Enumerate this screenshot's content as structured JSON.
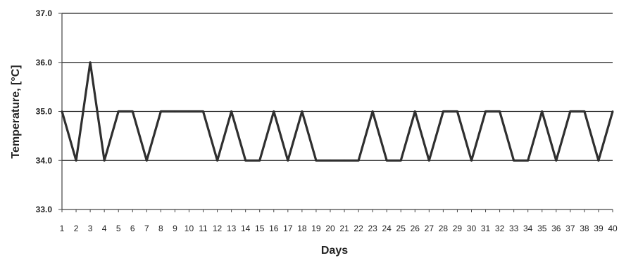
{
  "chart_data": {
    "type": "line",
    "title": "",
    "xlabel": "Days",
    "ylabel": "Temperature, [°C]",
    "categories": [
      "1",
      "2",
      "3",
      "4",
      "5",
      "6",
      "7",
      "8",
      "9",
      "10",
      "11",
      "12",
      "13",
      "14",
      "15",
      "16",
      "17",
      "18",
      "19",
      "20",
      "21",
      "22",
      "23",
      "24",
      "25",
      "26",
      "27",
      "28",
      "29",
      "30",
      "31",
      "32",
      "33",
      "34",
      "35",
      "36",
      "37",
      "38",
      "39",
      "40"
    ],
    "y_ticks": [
      "33.0",
      "34.0",
      "35.0",
      "36.0",
      "37.0"
    ],
    "ylim": [
      33,
      37
    ],
    "grid": true,
    "legend": "none",
    "series": [
      {
        "values": [
          35,
          34,
          36,
          34,
          35,
          35,
          34,
          35,
          35,
          35,
          35,
          34,
          35,
          34,
          34,
          35,
          34,
          35,
          34,
          34,
          34,
          34,
          35,
          34,
          34,
          35,
          34,
          35,
          35,
          34,
          35,
          35,
          34,
          34,
          35,
          34,
          35,
          35,
          34,
          35
        ],
        "color": "#2f2f2f"
      }
    ]
  }
}
